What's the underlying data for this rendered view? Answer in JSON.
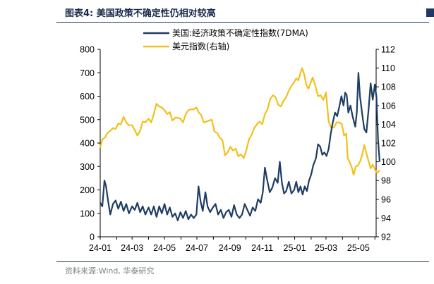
{
  "header": {
    "title": "图表4:  美国政策不确定性仍相对较高"
  },
  "footer": {
    "source": "资料来源:Wind, 华泰研究"
  },
  "colors": {
    "navy": "#1f3d63",
    "gold": "#f2c01b",
    "accent": "#1f3864"
  },
  "chart_data": {
    "type": "line",
    "title": "美国政策不确定性仍相对较高",
    "legend_position": "top-center",
    "grid": false,
    "x_ticks": [
      "24-01",
      "24-03",
      "24-05",
      "24-07",
      "24-09",
      "24-11",
      "25-01",
      "25-03",
      "25-05"
    ],
    "x_range": [
      "2024-01-01",
      "2025-06-10"
    ],
    "y_left": {
      "range": [
        0,
        800
      ],
      "ticks": [
        "0",
        "100",
        "200",
        "300",
        "400",
        "500",
        "600",
        "700",
        "800"
      ]
    },
    "y_right": {
      "range": [
        92,
        112
      ],
      "ticks": [
        "92",
        "94",
        "96",
        "98",
        "100",
        "102",
        "104",
        "106",
        "108",
        "110",
        "112"
      ]
    },
    "series": [
      {
        "name": "美国:经济政策不确定性指数(7DMA)",
        "axis": "left",
        "color": "#1f3d63",
        "points": [
          [
            "2024-01-01",
            145
          ],
          [
            "2024-01-05",
            130
          ],
          [
            "2024-01-09",
            240
          ],
          [
            "2024-01-12",
            215
          ],
          [
            "2024-01-16",
            150
          ],
          [
            "2024-01-20",
            95
          ],
          [
            "2024-01-25",
            140
          ],
          [
            "2024-01-30",
            155
          ],
          [
            "2024-02-04",
            120
          ],
          [
            "2024-02-09",
            150
          ],
          [
            "2024-02-14",
            110
          ],
          [
            "2024-02-19",
            140
          ],
          [
            "2024-02-24",
            100
          ],
          [
            "2024-03-01",
            130
          ],
          [
            "2024-03-06",
            115
          ],
          [
            "2024-03-11",
            145
          ],
          [
            "2024-03-16",
            105
          ],
          [
            "2024-03-21",
            130
          ],
          [
            "2024-03-26",
            95
          ],
          [
            "2024-04-01",
            125
          ],
          [
            "2024-04-06",
            95
          ],
          [
            "2024-04-11",
            130
          ],
          [
            "2024-04-16",
            85
          ],
          [
            "2024-04-21",
            130
          ],
          [
            "2024-04-26",
            100
          ],
          [
            "2024-05-01",
            140
          ],
          [
            "2024-05-06",
            95
          ],
          [
            "2024-05-11",
            125
          ],
          [
            "2024-05-16",
            85
          ],
          [
            "2024-05-21",
            100
          ],
          [
            "2024-05-26",
            70
          ],
          [
            "2024-05-31",
            105
          ],
          [
            "2024-06-05",
            80
          ],
          [
            "2024-06-10",
            110
          ],
          [
            "2024-06-15",
            75
          ],
          [
            "2024-06-20",
            95
          ],
          [
            "2024-06-25",
            80
          ],
          [
            "2024-06-30",
            95
          ],
          [
            "2024-07-04",
            215
          ],
          [
            "2024-07-08",
            150
          ],
          [
            "2024-07-12",
            110
          ],
          [
            "2024-07-17",
            190
          ],
          [
            "2024-07-21",
            130
          ],
          [
            "2024-07-26",
            105
          ],
          [
            "2024-07-31",
            125
          ],
          [
            "2024-08-05",
            140
          ],
          [
            "2024-08-10",
            95
          ],
          [
            "2024-08-15",
            115
          ],
          [
            "2024-08-20",
            80
          ],
          [
            "2024-08-25",
            105
          ],
          [
            "2024-08-30",
            115
          ],
          [
            "2024-09-04",
            85
          ],
          [
            "2024-09-09",
            135
          ],
          [
            "2024-09-14",
            95
          ],
          [
            "2024-09-19",
            80
          ],
          [
            "2024-09-24",
            95
          ],
          [
            "2024-09-29",
            140
          ],
          [
            "2024-10-04",
            115
          ],
          [
            "2024-10-09",
            90
          ],
          [
            "2024-10-14",
            125
          ],
          [
            "2024-10-19",
            110
          ],
          [
            "2024-10-24",
            160
          ],
          [
            "2024-10-29",
            145
          ],
          [
            "2024-11-02",
            190
          ],
          [
            "2024-11-06",
            295
          ],
          [
            "2024-11-10",
            245
          ],
          [
            "2024-11-15",
            190
          ],
          [
            "2024-11-20",
            210
          ],
          [
            "2024-11-25",
            250
          ],
          [
            "2024-11-30",
            230
          ],
          [
            "2024-12-04",
            320
          ],
          [
            "2024-12-08",
            230
          ],
          [
            "2024-12-12",
            185
          ],
          [
            "2024-12-16",
            195
          ],
          [
            "2024-12-21",
            235
          ],
          [
            "2024-12-26",
            185
          ],
          [
            "2024-12-31",
            200
          ],
          [
            "2025-01-04",
            235
          ],
          [
            "2025-01-08",
            190
          ],
          [
            "2025-01-12",
            215
          ],
          [
            "2025-01-16",
            180
          ],
          [
            "2025-01-20",
            215
          ],
          [
            "2025-01-24",
            195
          ],
          [
            "2025-01-28",
            240
          ],
          [
            "2025-02-01",
            265
          ],
          [
            "2025-02-05",
            305
          ],
          [
            "2025-02-10",
            335
          ],
          [
            "2025-02-14",
            395
          ],
          [
            "2025-02-18",
            385
          ],
          [
            "2025-02-22",
            350
          ],
          [
            "2025-02-26",
            360
          ],
          [
            "2025-03-02",
            345
          ],
          [
            "2025-03-06",
            375
          ],
          [
            "2025-03-10",
            440
          ],
          [
            "2025-03-14",
            490
          ],
          [
            "2025-03-18",
            530
          ],
          [
            "2025-03-22",
            515
          ],
          [
            "2025-03-26",
            555
          ],
          [
            "2025-03-30",
            600
          ],
          [
            "2025-04-03",
            560
          ],
          [
            "2025-04-06",
            615
          ],
          [
            "2025-04-09",
            605
          ],
          [
            "2025-04-12",
            530
          ],
          [
            "2025-04-16",
            560
          ],
          [
            "2025-04-20",
            515
          ],
          [
            "2025-04-25",
            470
          ],
          [
            "2025-04-28",
            530
          ],
          [
            "2025-05-01",
            700
          ],
          [
            "2025-05-04",
            600
          ],
          [
            "2025-05-08",
            525
          ],
          [
            "2025-05-12",
            460
          ],
          [
            "2025-05-16",
            445
          ],
          [
            "2025-05-20",
            540
          ],
          [
            "2025-05-24",
            655
          ],
          [
            "2025-05-28",
            585
          ],
          [
            "2025-06-01",
            650
          ],
          [
            "2025-06-04",
            595
          ],
          [
            "2025-06-07",
            415
          ],
          [
            "2025-06-10",
            320
          ]
        ]
      },
      {
        "name": "美元指数(右轴)",
        "axis": "right",
        "color": "#f2c01b",
        "points": [
          [
            "2024-01-01",
            101.5
          ],
          [
            "2024-01-05",
            102.4
          ],
          [
            "2024-01-10",
            102.6
          ],
          [
            "2024-01-15",
            103.1
          ],
          [
            "2024-01-20",
            103.3
          ],
          [
            "2024-01-25",
            103.6
          ],
          [
            "2024-01-30",
            103.5
          ],
          [
            "2024-02-04",
            104.1
          ],
          [
            "2024-02-09",
            104.0
          ],
          [
            "2024-02-14",
            104.8
          ],
          [
            "2024-02-19",
            104.2
          ],
          [
            "2024-02-24",
            103.9
          ],
          [
            "2024-03-01",
            103.9
          ],
          [
            "2024-03-06",
            103.4
          ],
          [
            "2024-03-11",
            102.8
          ],
          [
            "2024-03-16",
            103.3
          ],
          [
            "2024-03-21",
            104.3
          ],
          [
            "2024-03-26",
            104.2
          ],
          [
            "2024-04-01",
            104.6
          ],
          [
            "2024-04-06",
            104.2
          ],
          [
            "2024-04-11",
            105.1
          ],
          [
            "2024-04-16",
            106.2
          ],
          [
            "2024-04-21",
            105.9
          ],
          [
            "2024-04-26",
            105.8
          ],
          [
            "2024-05-01",
            105.5
          ],
          [
            "2024-05-06",
            105.1
          ],
          [
            "2024-05-11",
            105.3
          ],
          [
            "2024-05-16",
            104.4
          ],
          [
            "2024-05-21",
            104.7
          ],
          [
            "2024-05-26",
            104.7
          ],
          [
            "2024-05-31",
            104.6
          ],
          [
            "2024-06-05",
            104.2
          ],
          [
            "2024-06-10",
            105.1
          ],
          [
            "2024-06-15",
            105.5
          ],
          [
            "2024-06-20",
            105.6
          ],
          [
            "2024-06-25",
            105.6
          ],
          [
            "2024-06-30",
            105.8
          ],
          [
            "2024-07-04",
            105.3
          ],
          [
            "2024-07-09",
            105.0
          ],
          [
            "2024-07-14",
            104.2
          ],
          [
            "2024-07-19",
            104.3
          ],
          [
            "2024-07-24",
            104.4
          ],
          [
            "2024-07-29",
            104.5
          ],
          [
            "2024-08-03",
            103.2
          ],
          [
            "2024-08-08",
            103.1
          ],
          [
            "2024-08-13",
            102.6
          ],
          [
            "2024-08-18",
            102.3
          ],
          [
            "2024-08-23",
            100.7
          ],
          [
            "2024-08-28",
            101.0
          ],
          [
            "2024-09-02",
            101.6
          ],
          [
            "2024-09-07",
            101.2
          ],
          [
            "2024-09-12",
            101.4
          ],
          [
            "2024-09-17",
            100.6
          ],
          [
            "2024-09-22",
            100.8
          ],
          [
            "2024-09-27",
            100.4
          ],
          [
            "2024-10-02",
            101.2
          ],
          [
            "2024-10-07",
            102.4
          ],
          [
            "2024-10-12",
            102.9
          ],
          [
            "2024-10-17",
            103.6
          ],
          [
            "2024-10-22",
            104.0
          ],
          [
            "2024-10-27",
            104.3
          ],
          [
            "2024-11-01",
            104.0
          ],
          [
            "2024-11-06",
            105.1
          ],
          [
            "2024-11-11",
            105.6
          ],
          [
            "2024-11-16",
            106.7
          ],
          [
            "2024-11-21",
            107.1
          ],
          [
            "2024-11-26",
            106.9
          ],
          [
            "2024-12-01",
            106.1
          ],
          [
            "2024-12-06",
            105.9
          ],
          [
            "2024-12-11",
            106.5
          ],
          [
            "2024-12-16",
            106.9
          ],
          [
            "2024-12-21",
            107.6
          ],
          [
            "2024-12-26",
            108.1
          ],
          [
            "2024-12-31",
            108.5
          ],
          [
            "2025-01-04",
            108.9
          ],
          [
            "2025-01-08",
            108.7
          ],
          [
            "2025-01-12",
            109.5
          ],
          [
            "2025-01-15",
            110.0
          ],
          [
            "2025-01-19",
            109.3
          ],
          [
            "2025-01-23",
            108.2
          ],
          [
            "2025-01-27",
            107.8
          ],
          [
            "2025-01-31",
            108.4
          ],
          [
            "2025-02-04",
            109.0
          ],
          [
            "2025-02-09",
            108.1
          ],
          [
            "2025-02-14",
            107.0
          ],
          [
            "2025-02-19",
            107.1
          ],
          [
            "2025-02-24",
            106.6
          ],
          [
            "2025-03-01",
            107.4
          ],
          [
            "2025-03-06",
            104.3
          ],
          [
            "2025-03-11",
            103.6
          ],
          [
            "2025-03-16",
            103.7
          ],
          [
            "2025-03-21",
            104.2
          ],
          [
            "2025-03-26",
            104.2
          ],
          [
            "2025-03-31",
            104.0
          ],
          [
            "2025-04-04",
            102.8
          ],
          [
            "2025-04-08",
            103.0
          ],
          [
            "2025-04-11",
            100.4
          ],
          [
            "2025-04-15",
            99.9
          ],
          [
            "2025-04-19",
            99.3
          ],
          [
            "2025-04-22",
            98.6
          ],
          [
            "2025-04-26",
            99.5
          ],
          [
            "2025-04-30",
            99.6
          ],
          [
            "2025-05-04",
            100.0
          ],
          [
            "2025-05-08",
            100.7
          ],
          [
            "2025-05-12",
            101.8
          ],
          [
            "2025-05-16",
            100.9
          ],
          [
            "2025-05-20",
            100.1
          ],
          [
            "2025-05-24",
            99.3
          ],
          [
            "2025-05-28",
            99.7
          ],
          [
            "2025-06-01",
            99.2
          ],
          [
            "2025-06-05",
            98.8
          ],
          [
            "2025-06-10",
            99.1
          ]
        ]
      }
    ]
  }
}
